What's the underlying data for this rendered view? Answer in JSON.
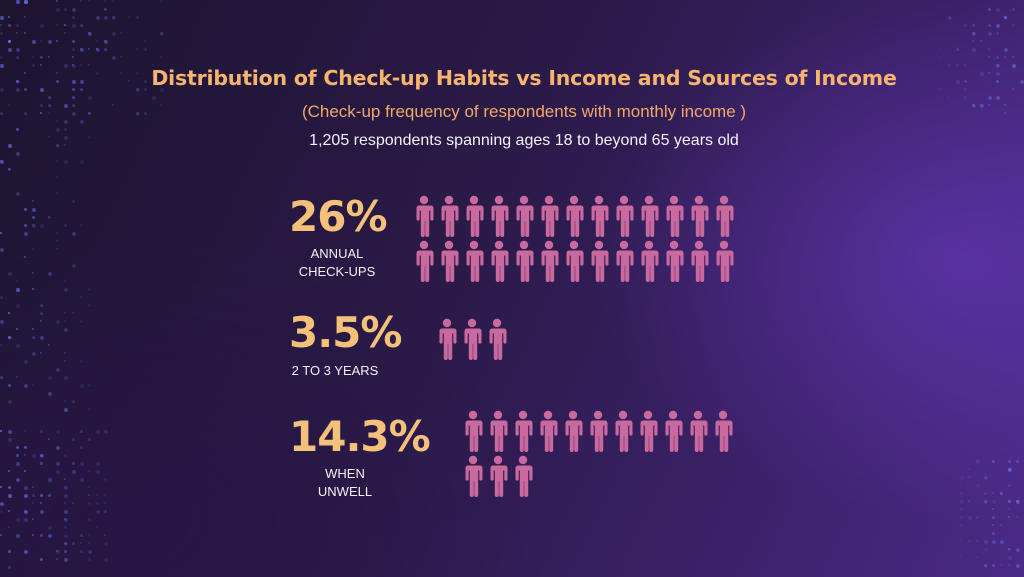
{
  "header": {
    "title": "Distribution of Check-up Habits vs Income and Sources of Income",
    "subtitle": "(Check-up frequency of respondents with monthly income )",
    "respondents": "1,205 respondents spanning ages 18 to beyond 65 years old"
  },
  "colors": {
    "title": "#f6b46e",
    "percent": "#f4c17a",
    "person_icon": "#c9699e",
    "label": "#f4f2f8"
  },
  "chart_data": {
    "type": "pictogram",
    "icon": "person-icon",
    "categories": [
      "ANNUAL\nCHECK-UPS",
      "2 TO 3 YEARS",
      "WHEN\nUNWELL"
    ],
    "values": [
      26,
      3.5,
      14.3
    ],
    "value_labels": [
      "26%",
      "3.5%",
      "14.3%"
    ],
    "icon_counts": [
      26,
      3,
      14
    ],
    "title": "Distribution of Check-up Habits vs Income and Sources of Income",
    "subtitle": "(Check-up frequency of respondents with monthly income )"
  }
}
